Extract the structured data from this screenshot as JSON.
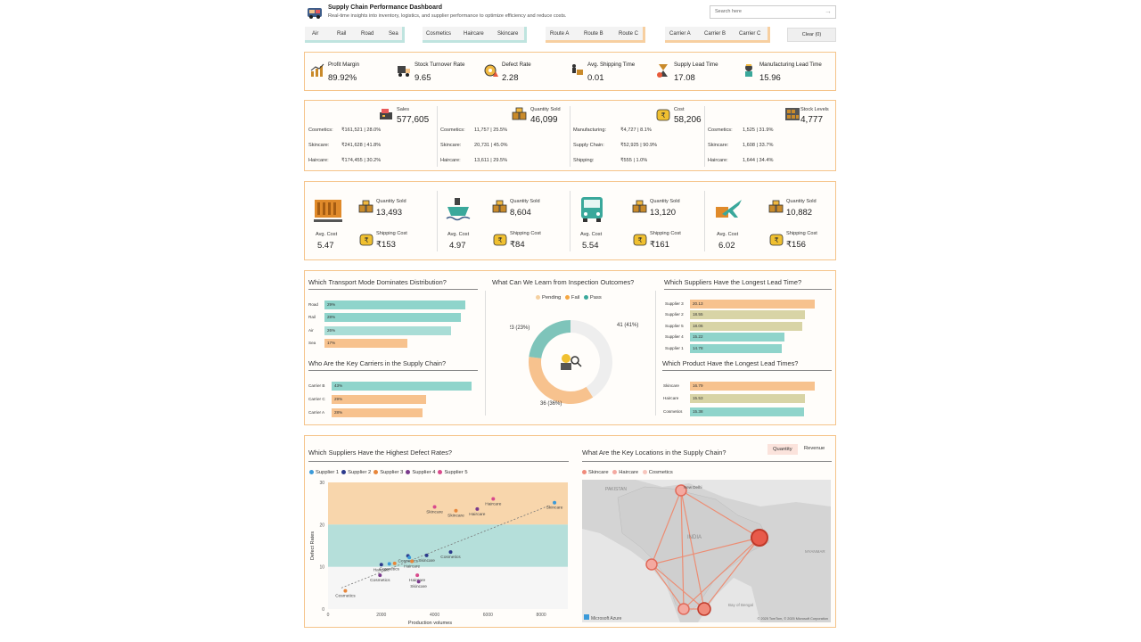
{
  "header": {
    "title": "Supply Chain Performance Dashboard",
    "subtitle": "Real-time insights into inventory, logistics, and supplier performance to optimize efficiency and reduce costs.",
    "search_placeholder": "Search here"
  },
  "filters": {
    "transport": [
      "Air",
      "Rail",
      "Road",
      "Sea"
    ],
    "product": [
      "Cosmetics",
      "Haircare",
      "Skincare"
    ],
    "route": [
      "Route A",
      "Route B",
      "Route C"
    ],
    "carrier": [
      "Carrier A",
      "Carrier B",
      "Carrier C"
    ],
    "clear_label": "Clear (0)"
  },
  "kpis": [
    {
      "label": "Profit Margin",
      "value": "89.92%",
      "icon": "chart-icon"
    },
    {
      "label": "Stock Turnover Rate",
      "value": "9.65",
      "icon": "truck-icon"
    },
    {
      "label": "Defect Rate",
      "value": "2.28",
      "icon": "gear-warning-icon"
    },
    {
      "label": "Avg. Shipping Time",
      "value": "0.01",
      "icon": "delivery-icon"
    },
    {
      "label": "Supply Lead Time",
      "value": "17.08",
      "icon": "hourglass-icon"
    },
    {
      "label": "Manufacturing Lead Time",
      "value": "15.96",
      "icon": "worker-icon"
    }
  ],
  "categories": [
    {
      "label": "Sales",
      "value": "577,605",
      "icon": "cash-register-icon",
      "rows": [
        {
          "name": "Cosmetics:",
          "value": "₹161,521 | 28.0%"
        },
        {
          "name": "Skincare:",
          "value": "₹241,628 | 41.8%"
        },
        {
          "name": "Haircare:",
          "value": "₹174,455 | 30.2%"
        }
      ]
    },
    {
      "label": "Quantity Sold",
      "value": "46,099",
      "icon": "boxes-icon",
      "rows": [
        {
          "name": "Cosmetics:",
          "value": "11,757 | 25.5%"
        },
        {
          "name": "Skincare:",
          "value": "20,731 | 45.0%"
        },
        {
          "name": "Haircare:",
          "value": "13,611 | 29.5%"
        }
      ]
    },
    {
      "label": "Cost",
      "value": "58,206",
      "icon": "money-bag-icon",
      "rows": [
        {
          "name": "Manufacturing:",
          "value": "₹4,727 | 8.1%"
        },
        {
          "name": "Supply Chain:",
          "value": "₹52,925 | 90.9%"
        },
        {
          "name": "Shipping:",
          "value": "₹555 | 1.0%"
        }
      ]
    },
    {
      "label": "Stock Levels",
      "value": "4,777",
      "icon": "warehouse-shelf-icon",
      "rows": [
        {
          "name": "Cosmetics:",
          "value": "1,525 | 31.9%"
        },
        {
          "name": "Skincare:",
          "value": "1,608 | 33.7%"
        },
        {
          "name": "Haircare:",
          "value": "1,644 | 34.4%"
        }
      ]
    }
  ],
  "transport_modes": [
    {
      "icon": "train-icon",
      "avg_cost_label": "Avg. Cost",
      "avg_cost": "5.47",
      "qty_label": "Quantity Sold",
      "qty": "13,493",
      "ship_label": "Shipping Cost",
      "ship": "₹153"
    },
    {
      "icon": "ship-icon",
      "avg_cost_label": "Avg. Cost",
      "avg_cost": "4.97",
      "qty_label": "Quantity Sold",
      "qty": "8,604",
      "ship_label": "Shipping Cost",
      "ship": "₹84"
    },
    {
      "icon": "bus-icon",
      "avg_cost_label": "Avg. Cost",
      "avg_cost": "5.54",
      "qty_label": "Quantity Sold",
      "qty": "13,120",
      "ship_label": "Shipping Cost",
      "ship": "₹161"
    },
    {
      "icon": "airplane-icon",
      "avg_cost_label": "Avg. Cost",
      "avg_cost": "6.02",
      "qty_label": "Quantity Sold",
      "qty": "10,882",
      "ship_label": "Shipping Cost",
      "ship": "₹156"
    }
  ],
  "charts_row1": {
    "transport_title": "Which Transport Mode Dominates Distribution?",
    "carrier_title": "Who Are the Key Carriers in the Supply Chain?",
    "inspection_title": "What Can We Learn from Inspection Outcomes?",
    "supplier_lead_title": "Which Suppliers Have the Longest Lead Time?",
    "product_lead_title": "Which Product Have the Longest Lead Times?"
  },
  "charts_row2": {
    "defect_title": "Which Suppliers Have the Highest Defect Rates?",
    "map_title": "What Are the Key Locations in the Supply Chain?",
    "map_toggle": [
      "Quantity",
      "Revenue"
    ],
    "map_legend": [
      {
        "name": "Skincare",
        "color": "#f08a7a"
      },
      {
        "name": "Haircare",
        "color": "#f4a9a0"
      },
      {
        "name": "Cosmetics",
        "color": "#f7c6bd"
      }
    ],
    "map_labels": {
      "pakistan": "PAKISTAN",
      "new_delhi": "New Delhi",
      "india": "INDIA",
      "myanmar": "MYANMAR",
      "bay": "Bay of Bengal",
      "credit": "Microsoft Azure",
      "copyright": "© 2025 TomTom, © 2025 Microsoft Corporation"
    }
  },
  "chart_data": [
    {
      "type": "bar",
      "orientation": "horizontal",
      "categories": [
        "Road",
        "Rail",
        "Air",
        "Sea"
      ],
      "values": [
        29,
        28,
        26,
        17
      ],
      "value_labels": [
        "29%",
        "28%",
        "26%",
        "17%"
      ],
      "colors": [
        "#8fd4cb",
        "#8fd4cb",
        "#a9ddd6",
        "#f7c28e"
      ]
    },
    {
      "type": "bar",
      "orientation": "horizontal",
      "categories": [
        "Carrier B",
        "Carrier C",
        "Carrier A"
      ],
      "values": [
        43,
        29,
        28
      ],
      "value_labels": [
        "43%",
        "29%",
        "28%"
      ],
      "colors": [
        "#8fd4cb",
        "#f7c28e",
        "#f7c28e"
      ]
    },
    {
      "type": "pie",
      "variant": "donut",
      "legend": [
        "Pending",
        "Fail",
        "Pass"
      ],
      "legend_colors": [
        "#f5d0a0",
        "#f5a742",
        "#3aa89b"
      ],
      "slices": [
        {
          "name": "Pass",
          "value": 41,
          "label": "41 (41%)",
          "color": "#eeeeee"
        },
        {
          "name": "Fail",
          "value": 36,
          "label": "36 (36%)",
          "color": "#f7c28e"
        },
        {
          "name": "Pending",
          "value": 23,
          "label": "23 (23%)",
          "color": "#7ec4ba"
        }
      ]
    },
    {
      "type": "bar",
      "orientation": "horizontal",
      "categories": [
        "Supplier 3",
        "Supplier 2",
        "Supplier 5",
        "Supplier 4",
        "Supplier 1"
      ],
      "values": [
        20.13,
        18.55,
        18.06,
        15.22,
        14.78
      ],
      "value_labels": [
        "20.13",
        "18.55",
        "18.06",
        "15.22",
        "14.78"
      ],
      "colors": [
        "#f7c28e",
        "#d8d4a6",
        "#d8d4a6",
        "#8fd4cb",
        "#8fd4cb"
      ]
    },
    {
      "type": "bar",
      "orientation": "horizontal",
      "categories": [
        "Skincare",
        "Haircare",
        "Cosmetics"
      ],
      "values": [
        16.79,
        15.53,
        15.38
      ],
      "value_labels": [
        "16.79",
        "15.53",
        "15.38"
      ],
      "colors": [
        "#f7c28e",
        "#d8d4a6",
        "#8fd4cb"
      ]
    },
    {
      "type": "scatter",
      "xlabel": "Production volumes",
      "ylabel": "Defect Rates",
      "xlim": [
        0,
        9000
      ],
      "ylim": [
        0,
        30
      ],
      "xticks": [
        "0",
        "2000",
        "4000",
        "6000",
        "8000"
      ],
      "yticks": [
        "0",
        "10",
        "20",
        "30"
      ],
      "bands": [
        {
          "from": 20,
          "to": 30,
          "color": "#f8d6ac"
        },
        {
          "from": 10,
          "to": 20,
          "color": "#b5dfda"
        }
      ],
      "legend": [
        {
          "name": "Supplier 1",
          "color": "#3a9ad9"
        },
        {
          "name": "Supplier 2",
          "color": "#2b3a8c"
        },
        {
          "name": "Supplier 3",
          "color": "#e8863a"
        },
        {
          "name": "Supplier 4",
          "color": "#7a3a8c"
        },
        {
          "name": "Supplier 5",
          "color": "#d94a8c"
        }
      ],
      "points": [
        {
          "x": 650,
          "y": 4.3,
          "label": "Cosmetics",
          "color": "#e8863a"
        },
        {
          "x": 1950,
          "y": 8,
          "label": "Cosmetics",
          "color": "#7a3a8c"
        },
        {
          "x": 2000,
          "y": 10.5,
          "label": "Haircare",
          "color": "#2b3a8c"
        },
        {
          "x": 2300,
          "y": 10.7,
          "label": "Cosmetics",
          "color": "#3a9ad9"
        },
        {
          "x": 2500,
          "y": 10.8,
          "label": "",
          "color": "#e8863a"
        },
        {
          "x": 3000,
          "y": 12.6,
          "label": "Cosmetics",
          "color": "#2b3a8c"
        },
        {
          "x": 3050,
          "y": 12.2,
          "label": "",
          "color": "#3a9ad9"
        },
        {
          "x": 3150,
          "y": 11.3,
          "label": "Haircare",
          "color": "#e8863a"
        },
        {
          "x": 3350,
          "y": 8,
          "label": "Haircare",
          "color": "#d94a8c"
        },
        {
          "x": 3400,
          "y": 6.5,
          "label": "Skincare",
          "color": "#7a3a8c"
        },
        {
          "x": 3700,
          "y": 12.7,
          "label": "Skincare",
          "color": "#2b3a8c"
        },
        {
          "x": 4600,
          "y": 13.5,
          "label": "Cosmetics",
          "color": "#2b3a8c"
        },
        {
          "x": 4000,
          "y": 24.2,
          "label": "Skincare",
          "color": "#d94a8c"
        },
        {
          "x": 4800,
          "y": 23.3,
          "label": "Skincare",
          "color": "#e8863a"
        },
        {
          "x": 5600,
          "y": 23.7,
          "label": "Haircare",
          "color": "#7a3a8c"
        },
        {
          "x": 6200,
          "y": 26.1,
          "label": "Haircare",
          "color": "#d94a8c"
        },
        {
          "x": 8500,
          "y": 25.2,
          "label": "Skincare",
          "color": "#3a9ad9"
        }
      ]
    }
  ]
}
